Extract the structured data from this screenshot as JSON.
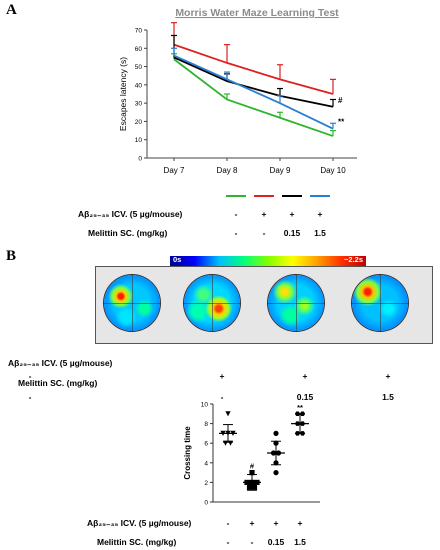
{
  "panels": {
    "a_letter": "A",
    "b_letter": "B"
  },
  "treatment_labels": {
    "abeta": "Aβ₂₅₋₃₅ ICV. (5 µg/mouse)",
    "melittin": "Melittin SC. (mg/kg)",
    "abeta_row": [
      "-",
      "+",
      "+",
      "+"
    ],
    "melittin_row": [
      "-",
      "-",
      "0.15",
      "1.5"
    ]
  },
  "heatmap": {
    "scale_min_label": "0s",
    "scale_max_label": "~2.2s"
  },
  "colors": {
    "control": "#2db52d",
    "abeta": "#e02020",
    "mel015": "#000000",
    "mel15": "#2a7fd4",
    "title": "#8c8c8c"
  },
  "chart_data": [
    {
      "type": "line",
      "title": "Morris Water Maze Learning Test",
      "xlabel": "",
      "ylabel": "Escapes latency (s)",
      "categories": [
        "Day 7",
        "Day 8",
        "Day 9",
        "Day 10"
      ],
      "ylim": [
        0,
        70
      ],
      "yticks": [
        0,
        10,
        20,
        30,
        40,
        50,
        60,
        70
      ],
      "grid": false,
      "series": [
        {
          "color": "green",
          "values": [
            54,
            32,
            22,
            12
          ],
          "errors": [
            3,
            3,
            3,
            3
          ]
        },
        {
          "color": "red",
          "values": [
            62,
            52,
            43,
            35
          ],
          "errors": [
            12,
            10,
            8,
            8
          ]
        },
        {
          "color": "black",
          "values": [
            55,
            42,
            34,
            28
          ],
          "errors": [
            12,
            4,
            4,
            4
          ]
        },
        {
          "color": "blue",
          "values": [
            56,
            43,
            30,
            16
          ],
          "errors": [
            4,
            4,
            4,
            3
          ]
        }
      ],
      "annotations": [
        {
          "label": "#",
          "x": "Day 10",
          "series": "black"
        },
        {
          "label": "**",
          "x": "Day 10",
          "series": "blue"
        }
      ]
    },
    {
      "type": "scatter",
      "title": "",
      "xlabel": "",
      "ylabel": "Crossing time",
      "ylim": [
        0,
        10
      ],
      "yticks": [
        0,
        2,
        4,
        6,
        8,
        10
      ],
      "groups": [
        {
          "marker": "triangle-down",
          "mean": 7,
          "sd": 0.9,
          "points": [
            9,
            7,
            7,
            7,
            6,
            6
          ]
        },
        {
          "marker": "square",
          "mean": 2,
          "sd": 0.8,
          "points": [
            3,
            2,
            2,
            2,
            1.5,
            1.5
          ]
        },
        {
          "marker": "circle",
          "mean": 5,
          "sd": 1.2,
          "points": [
            7,
            6,
            5,
            5,
            4,
            3
          ]
        },
        {
          "marker": "hexagon",
          "mean": 8,
          "sd": 1.0,
          "points": [
            9,
            9,
            8,
            8,
            7,
            7
          ]
        }
      ],
      "annotations": [
        {
          "label": "#",
          "group": 2
        },
        {
          "label": "**",
          "group": 4
        }
      ]
    }
  ]
}
